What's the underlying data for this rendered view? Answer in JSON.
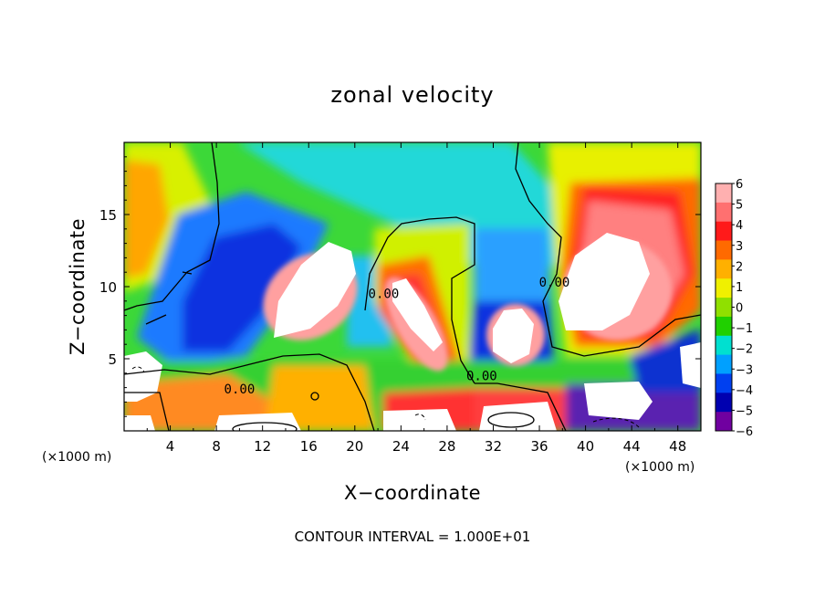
{
  "chart_data": {
    "type": "heatmap",
    "title": "zonal velocity",
    "xlabel": "X−coordinate",
    "ylabel": "Z−coordinate",
    "x_unit_label": "(×1000 m)",
    "x_unit_label_right": "(×1000 m)",
    "footer": "CONTOUR INTERVAL = 1.000E+01",
    "xlim": [
      0,
      50
    ],
    "ylim": [
      0,
      20
    ],
    "xticks": [
      4,
      8,
      12,
      16,
      20,
      24,
      28,
      32,
      36,
      40,
      44,
      48
    ],
    "yticks": [
      5,
      10,
      15
    ],
    "colorbar": {
      "levels": [
        6,
        5,
        4,
        3,
        2,
        1,
        0,
        -1,
        -2,
        -3,
        -4,
        -5,
        -6
      ],
      "labels": [
        "6",
        "5",
        "4",
        "3",
        "2",
        "1",
        "0",
        "−1",
        "−2",
        "−3",
        "−4",
        "−5",
        "−6"
      ],
      "colors": [
        "#ffb0b0",
        "#ff7070",
        "#ff1a1a",
        "#ff6a00",
        "#ffb000",
        "#f0f000",
        "#90e000",
        "#20d000",
        "#00e0d0",
        "#00a0ff",
        "#0040f0",
        "#0000b0",
        "#7000a0"
      ]
    },
    "contour_labels": [
      {
        "text": "0.00",
        "x": 10,
        "y": 2.6
      },
      {
        "text": "0.00",
        "x": 22.5,
        "y": 9.2
      },
      {
        "text": "0.00",
        "x": 31,
        "y": 3.5
      },
      {
        "text": "0.00",
        "x": 37.3,
        "y": 10
      }
    ],
    "grid": false,
    "legend": "right colorbar"
  }
}
